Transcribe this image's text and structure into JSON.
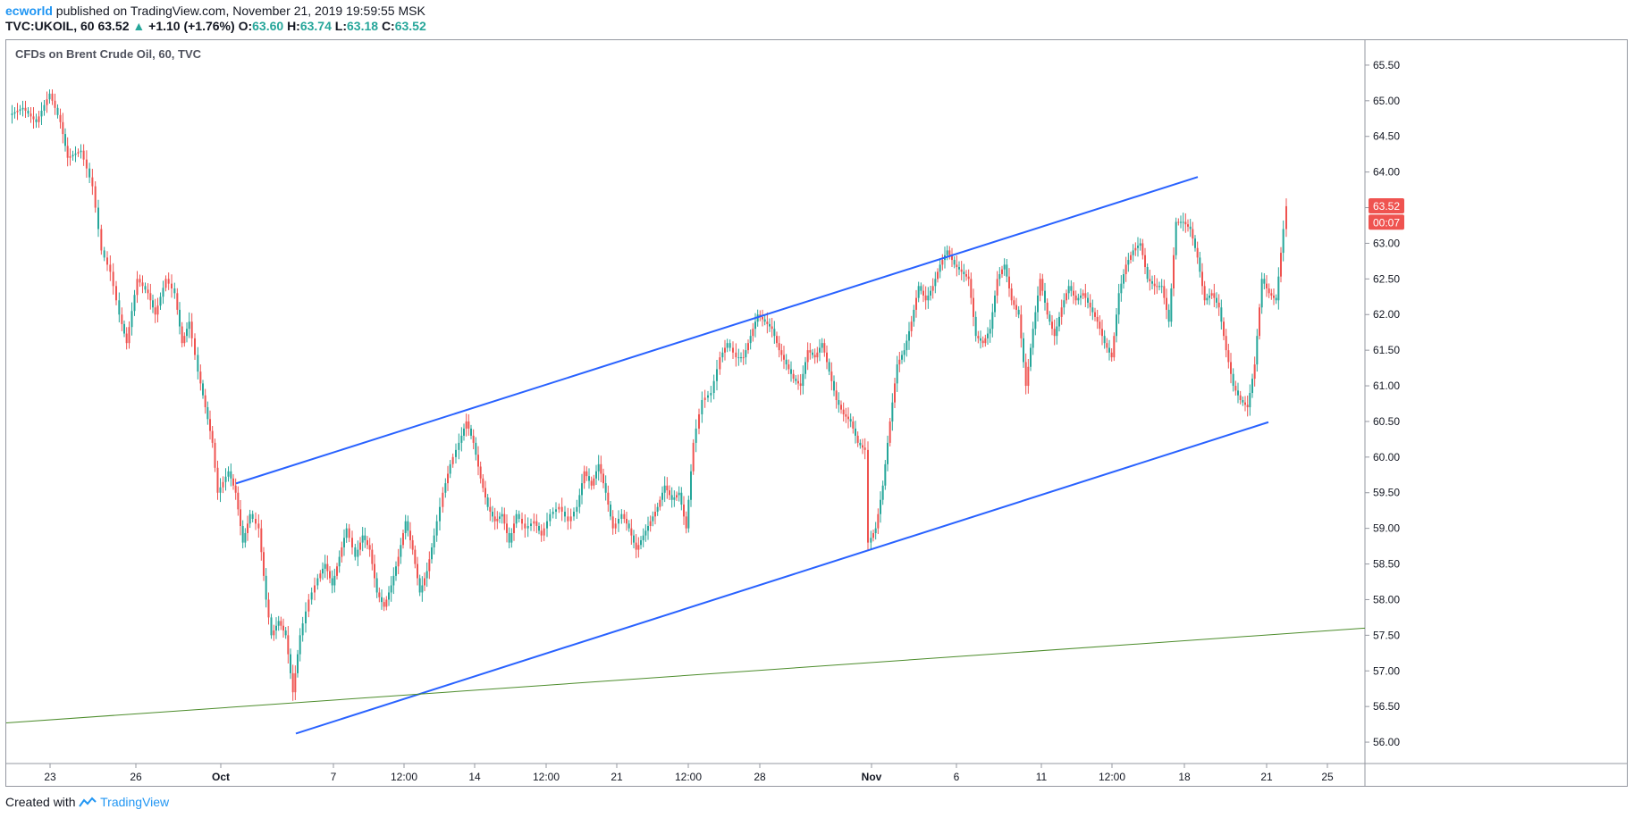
{
  "header": {
    "author": "ecworld",
    "published": "published on TradingView.com, November 21, 2019 19:59:55 MSK",
    "symbol": "TVC:UKOIL, 60",
    "last": "63.52",
    "change_arrow": "▲",
    "change": "+1.10 (+1.76%)",
    "o_label": "O:",
    "o_val": "63.60",
    "h_label": "H:",
    "h_val": "63.74",
    "l_label": "L:",
    "l_val": "63.18",
    "c_label": "C:",
    "c_val": "63.52"
  },
  "footer": {
    "created_with": "Created with",
    "brand": "TradingView"
  },
  "colors": {
    "up": "#26a69a",
    "down": "#ef5350",
    "channel": "#2962ff",
    "longtrend": "#4c8c2b",
    "price_badge": "#ef5350",
    "axis_text": "#131722"
  },
  "chart_data": {
    "type": "line",
    "title": "CFDs on Brent Crude Oil, 60, TVC",
    "y_range": [
      55.7,
      65.85
    ],
    "y_ticks": [
      "56.00",
      "56.50",
      "57.00",
      "57.50",
      "58.00",
      "58.50",
      "59.00",
      "59.50",
      "60.00",
      "60.50",
      "61.00",
      "61.50",
      "62.00",
      "62.50",
      "63.00",
      "63.50",
      "64.00",
      "64.50",
      "65.00",
      "65.50"
    ],
    "x_range": [
      0,
      1520
    ],
    "x_ticks": [
      {
        "pos": 49,
        "label": "23"
      },
      {
        "pos": 145,
        "label": "26"
      },
      {
        "pos": 240,
        "label": "Oct"
      },
      {
        "pos": 366,
        "label": "7"
      },
      {
        "pos": 445,
        "label": "12:00"
      },
      {
        "pos": 524,
        "label": "14"
      },
      {
        "pos": 604,
        "label": "12:00"
      },
      {
        "pos": 683,
        "label": "21"
      },
      {
        "pos": 763,
        "label": "12:00"
      },
      {
        "pos": 843,
        "label": "28"
      },
      {
        "pos": 968,
        "label": "Nov"
      },
      {
        "pos": 1063,
        "label": "6"
      },
      {
        "pos": 1158,
        "label": "11"
      },
      {
        "pos": 1237,
        "label": "12:00"
      },
      {
        "pos": 1318,
        "label": "18"
      },
      {
        "pos": 1410,
        "label": "21"
      },
      {
        "pos": 1478,
        "label": "25"
      }
    ],
    "series": [
      {
        "name": "",
        "values": [
          [
            5,
            64.8
          ],
          [
            20,
            64.9
          ],
          [
            35,
            64.7
          ],
          [
            50,
            65.1
          ],
          [
            62,
            64.7
          ],
          [
            70,
            64.2
          ],
          [
            85,
            64.3
          ],
          [
            98,
            63.8
          ],
          [
            108,
            62.9
          ],
          [
            118,
            62.6
          ],
          [
            128,
            62.0
          ],
          [
            136,
            61.6
          ],
          [
            148,
            62.5
          ],
          [
            160,
            62.3
          ],
          [
            168,
            62.0
          ],
          [
            180,
            62.5
          ],
          [
            190,
            62.3
          ],
          [
            198,
            61.6
          ],
          [
            206,
            61.9
          ],
          [
            216,
            61.2
          ],
          [
            224,
            60.7
          ],
          [
            232,
            60.2
          ],
          [
            238,
            59.5
          ],
          [
            250,
            59.8
          ],
          [
            258,
            59.5
          ],
          [
            266,
            58.8
          ],
          [
            274,
            59.2
          ],
          [
            284,
            59.0
          ],
          [
            292,
            58.0
          ],
          [
            298,
            57.5
          ],
          [
            306,
            57.7
          ],
          [
            314,
            57.5
          ],
          [
            322,
            56.7
          ],
          [
            330,
            57.5
          ],
          [
            340,
            58.0
          ],
          [
            350,
            58.3
          ],
          [
            358,
            58.5
          ],
          [
            366,
            58.2
          ],
          [
            374,
            58.6
          ],
          [
            382,
            59.0
          ],
          [
            392,
            58.6
          ],
          [
            400,
            58.9
          ],
          [
            408,
            58.7
          ],
          [
            416,
            58.1
          ],
          [
            424,
            57.9
          ],
          [
            432,
            58.2
          ],
          [
            440,
            58.6
          ],
          [
            448,
            59.1
          ],
          [
            456,
            58.7
          ],
          [
            464,
            58.1
          ],
          [
            472,
            58.4
          ],
          [
            480,
            58.9
          ],
          [
            490,
            59.5
          ],
          [
            498,
            59.9
          ],
          [
            508,
            60.2
          ],
          [
            516,
            60.5
          ],
          [
            524,
            60.2
          ],
          [
            532,
            59.7
          ],
          [
            540,
            59.3
          ],
          [
            548,
            59.1
          ],
          [
            556,
            59.2
          ],
          [
            564,
            58.8
          ],
          [
            572,
            59.2
          ],
          [
            582,
            59.0
          ],
          [
            592,
            59.1
          ],
          [
            600,
            58.9
          ],
          [
            610,
            59.2
          ],
          [
            620,
            59.3
          ],
          [
            630,
            59.1
          ],
          [
            640,
            59.3
          ],
          [
            648,
            59.8
          ],
          [
            656,
            59.6
          ],
          [
            664,
            59.9
          ],
          [
            672,
            59.5
          ],
          [
            680,
            59.0
          ],
          [
            690,
            59.2
          ],
          [
            698,
            59.0
          ],
          [
            706,
            58.7
          ],
          [
            714,
            58.9
          ],
          [
            722,
            59.1
          ],
          [
            730,
            59.3
          ],
          [
            738,
            59.6
          ],
          [
            746,
            59.4
          ],
          [
            754,
            59.5
          ],
          [
            762,
            59.0
          ],
          [
            770,
            60.2
          ],
          [
            780,
            60.8
          ],
          [
            790,
            60.9
          ],
          [
            800,
            61.4
          ],
          [
            808,
            61.6
          ],
          [
            818,
            61.4
          ],
          [
            826,
            61.4
          ],
          [
            834,
            61.7
          ],
          [
            842,
            62.0
          ],
          [
            850,
            61.9
          ],
          [
            858,
            61.8
          ],
          [
            866,
            61.5
          ],
          [
            874,
            61.3
          ],
          [
            882,
            61.1
          ],
          [
            890,
            61.0
          ],
          [
            898,
            61.5
          ],
          [
            906,
            61.4
          ],
          [
            914,
            61.6
          ],
          [
            922,
            61.2
          ],
          [
            930,
            60.8
          ],
          [
            938,
            60.6
          ],
          [
            946,
            60.5
          ],
          [
            954,
            60.2
          ],
          [
            962,
            60.1
          ],
          [
            966,
            58.8
          ],
          [
            974,
            59.0
          ],
          [
            982,
            59.6
          ],
          [
            990,
            60.5
          ],
          [
            998,
            61.3
          ],
          [
            1006,
            61.5
          ],
          [
            1014,
            61.9
          ],
          [
            1022,
            62.4
          ],
          [
            1030,
            62.2
          ],
          [
            1038,
            62.4
          ],
          [
            1046,
            62.7
          ],
          [
            1054,
            62.9
          ],
          [
            1062,
            62.7
          ],
          [
            1070,
            62.6
          ],
          [
            1078,
            62.5
          ],
          [
            1086,
            61.7
          ],
          [
            1094,
            61.6
          ],
          [
            1102,
            61.8
          ],
          [
            1110,
            62.5
          ],
          [
            1118,
            62.7
          ],
          [
            1126,
            62.2
          ],
          [
            1134,
            62.0
          ],
          [
            1142,
            61.0
          ],
          [
            1150,
            61.8
          ],
          [
            1158,
            62.5
          ],
          [
            1166,
            62.0
          ],
          [
            1174,
            61.7
          ],
          [
            1182,
            62.1
          ],
          [
            1190,
            62.4
          ],
          [
            1198,
            62.2
          ],
          [
            1206,
            62.3
          ],
          [
            1214,
            62.1
          ],
          [
            1222,
            61.9
          ],
          [
            1230,
            61.6
          ],
          [
            1238,
            61.4
          ],
          [
            1246,
            62.3
          ],
          [
            1254,
            62.7
          ],
          [
            1262,
            62.9
          ],
          [
            1270,
            63.0
          ],
          [
            1278,
            62.5
          ],
          [
            1286,
            62.4
          ],
          [
            1294,
            62.4
          ],
          [
            1302,
            61.9
          ],
          [
            1310,
            63.3
          ],
          [
            1318,
            63.3
          ],
          [
            1326,
            63.2
          ],
          [
            1334,
            62.8
          ],
          [
            1342,
            62.2
          ],
          [
            1350,
            62.3
          ],
          [
            1358,
            62.1
          ],
          [
            1366,
            61.5
          ],
          [
            1374,
            61.0
          ],
          [
            1382,
            60.8
          ],
          [
            1390,
            60.7
          ],
          [
            1398,
            61.3
          ],
          [
            1406,
            62.5
          ],
          [
            1414,
            62.3
          ],
          [
            1422,
            62.2
          ],
          [
            1430,
            63.2
          ],
          [
            1434,
            63.52
          ]
        ]
      }
    ],
    "trendlines": [
      {
        "name": "channel-upper",
        "x1": 257,
        "y1": 59.63,
        "x2": 1333,
        "y2": 63.93
      },
      {
        "name": "channel-lower",
        "x1": 324,
        "y1": 56.12,
        "x2": 1412,
        "y2": 60.49
      },
      {
        "name": "long-trend",
        "x1": 0,
        "y1": 56.27,
        "x2": 1520,
        "y2": 57.6
      }
    ],
    "price_badges": [
      {
        "label": "63.52",
        "value": 63.52
      },
      {
        "label": "00:07",
        "value": 63.29
      }
    ]
  }
}
